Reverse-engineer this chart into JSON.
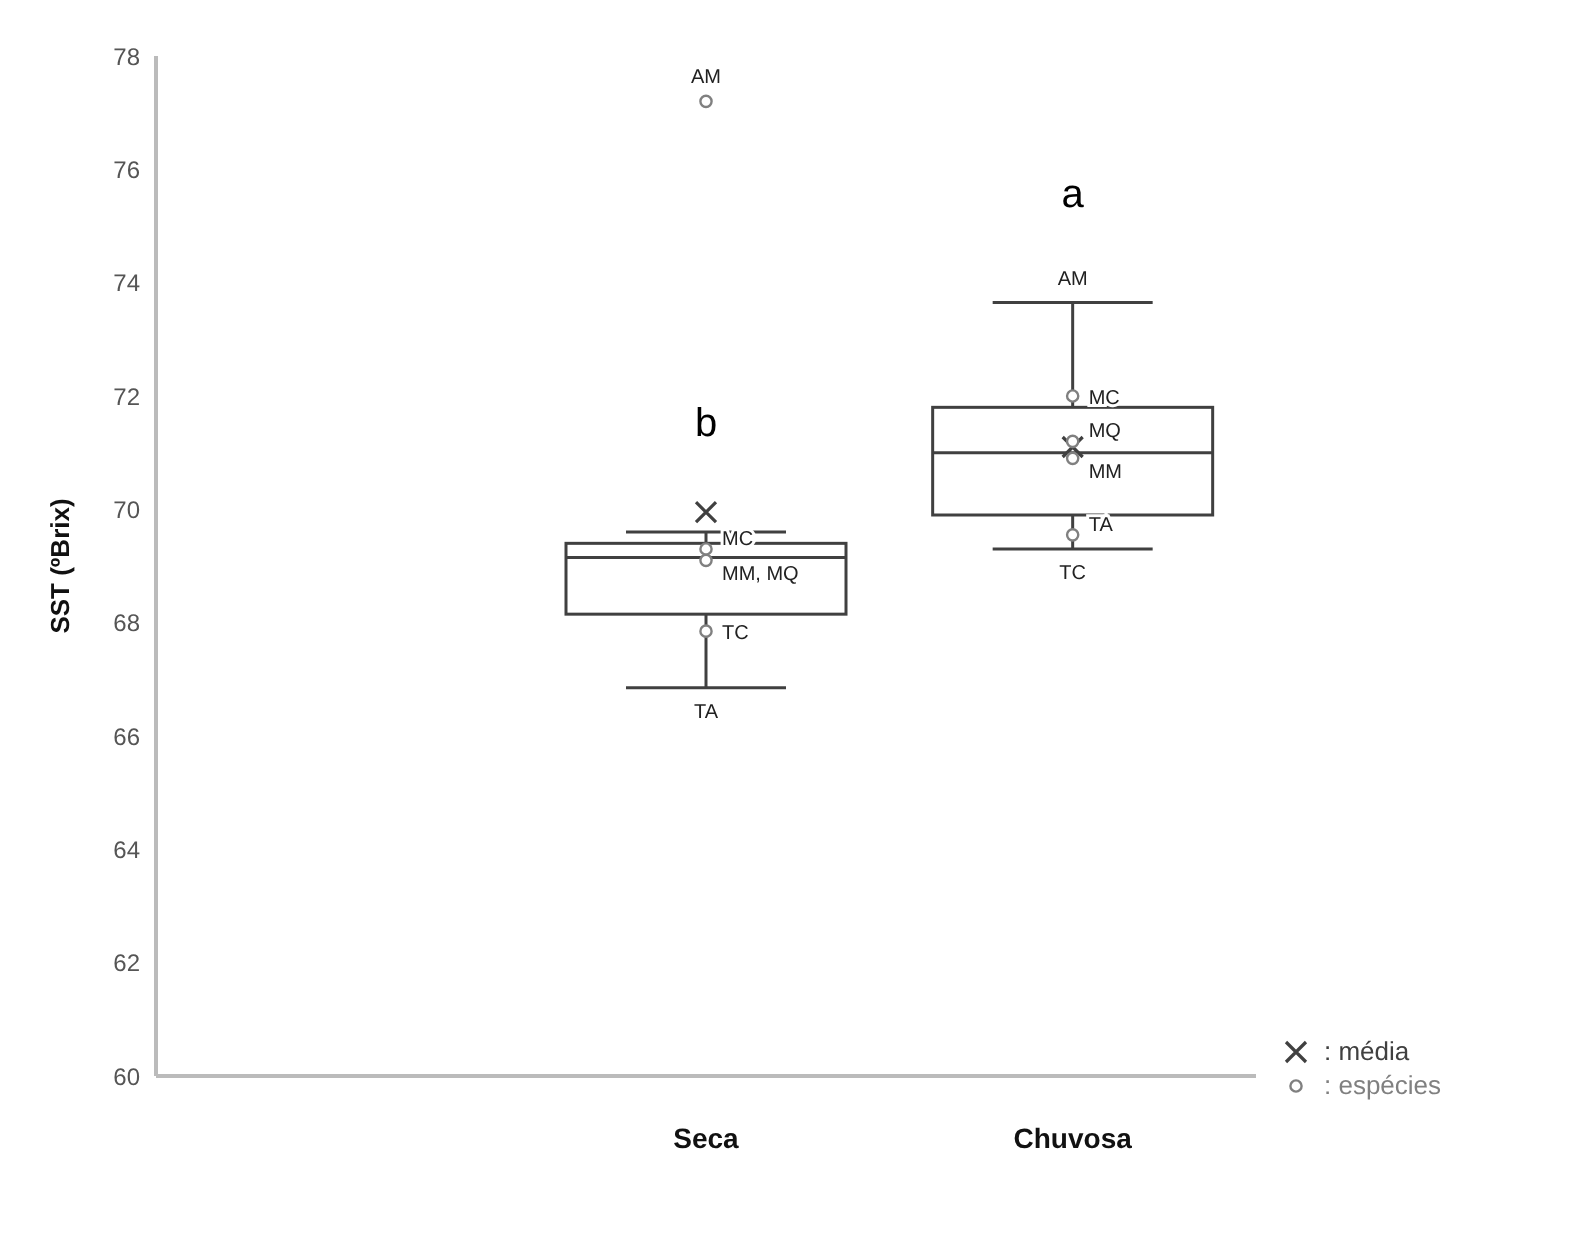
{
  "chart_data": {
    "type": "box",
    "ylabel": "SST (ºBrix)",
    "categories": [
      null,
      "Seca",
      "Chuvosa"
    ],
    "boxes": [
      null,
      {
        "low": 66.85,
        "q1": 68.15,
        "median": 69.15,
        "q3": 69.4,
        "high": 69.6
      },
      {
        "low": 69.3,
        "q1": 69.9,
        "median": 71.0,
        "q3": 71.8,
        "high": 73.65
      }
    ],
    "series": [
      {
        "name": ": média",
        "type": "scatter",
        "marker": "cross",
        "color": "#404040",
        "x": [
          "Seca",
          "Chuvosa"
        ],
        "values": [
          69.95,
          71.1
        ]
      },
      {
        "name": ": espécies",
        "type": "scatter",
        "marker": "circle",
        "color": "#808080",
        "x": [
          "Seca",
          "Seca",
          "Seca",
          "Seca",
          "Chuvosa",
          "Chuvosa",
          "Chuvosa",
          "Chuvosa"
        ],
        "values": [
          77.2,
          69.3,
          69.1,
          67.85,
          72.0,
          71.2,
          70.9,
          69.55
        ]
      }
    ],
    "ylim": [
      60,
      78
    ],
    "yticks": [
      60,
      62,
      64,
      66,
      68,
      70,
      72,
      74,
      76,
      78
    ],
    "grid": false,
    "legend": "bottom right",
    "annotations": [
      {
        "text": "AM",
        "x": "Seca",
        "y": 77.2
      },
      {
        "text": "MC",
        "x": "Seca",
        "y": 69.3
      },
      {
        "text": "MM, MQ",
        "x": "Seca",
        "y": 69.1
      },
      {
        "text": "TC",
        "x": "Seca",
        "y": 67.85
      },
      {
        "text": "TA",
        "x": "Seca",
        "y": 66.85
      },
      {
        "text": "AM",
        "x": "Chuvosa",
        "y": 73.65
      },
      {
        "text": "MC",
        "x": "Chuvosa",
        "y": 72.0
      },
      {
        "text": "MQ",
        "x": "Chuvosa",
        "y": 71.2
      },
      {
        "text": "MM",
        "x": "Chuvosa",
        "y": 70.9
      },
      {
        "text": "TA",
        "x": "Chuvosa",
        "y": 69.55
      },
      {
        "text": "TC",
        "x": "Chuvosa",
        "y": 69.3
      },
      "b",
      "a"
    ]
  }
}
